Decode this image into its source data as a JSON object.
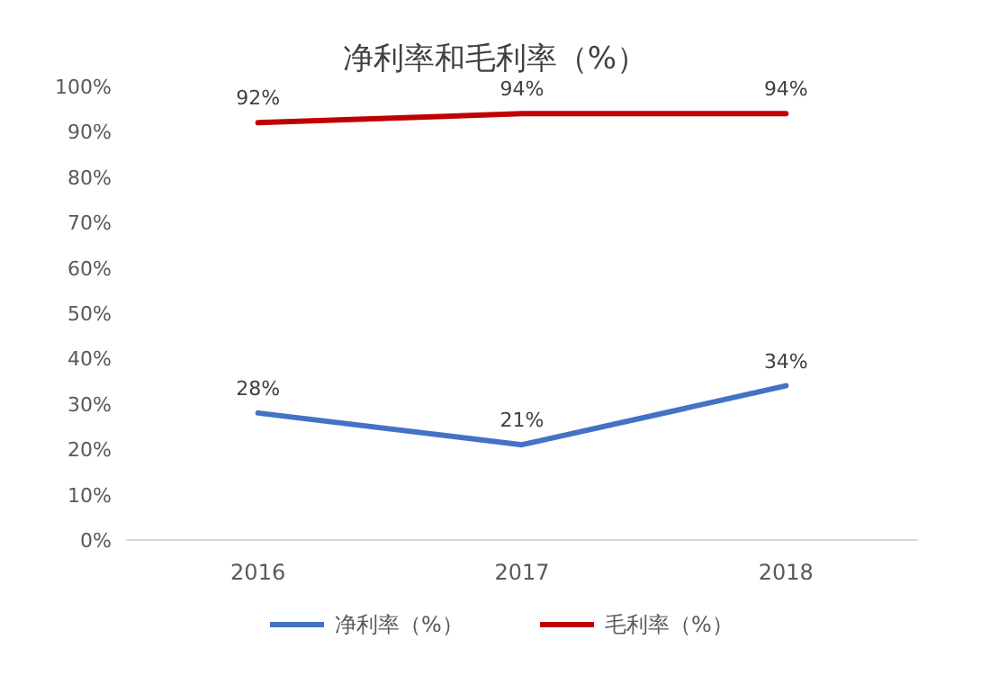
{
  "chart_data": {
    "type": "line",
    "title": "净利率和毛利率（%）",
    "categories": [
      "2016",
      "2017",
      "2018"
    ],
    "series": [
      {
        "name": "净利率（%）",
        "color": "#4472c4",
        "values": [
          28,
          21,
          34
        ],
        "value_labels": [
          "28%",
          "21%",
          "34%"
        ]
      },
      {
        "name": "毛利率（%）",
        "color": "#c00000",
        "values": [
          92,
          94,
          94
        ],
        "value_labels": [
          "92%",
          "94%",
          "94%"
        ]
      }
    ],
    "ylim": [
      0,
      100
    ],
    "yticks": [
      {
        "value": 0,
        "label": "0%"
      },
      {
        "value": 10,
        "label": "10%"
      },
      {
        "value": 20,
        "label": "20%"
      },
      {
        "value": 30,
        "label": "30%"
      },
      {
        "value": 40,
        "label": "40%"
      },
      {
        "value": 50,
        "label": "50%"
      },
      {
        "value": 60,
        "label": "60%"
      },
      {
        "value": 70,
        "label": "70%"
      },
      {
        "value": 80,
        "label": "80%"
      },
      {
        "value": 90,
        "label": "90%"
      },
      {
        "value": 100,
        "label": "100%"
      }
    ],
    "legend": "bottom",
    "marker": "none",
    "line_style": "solid"
  }
}
